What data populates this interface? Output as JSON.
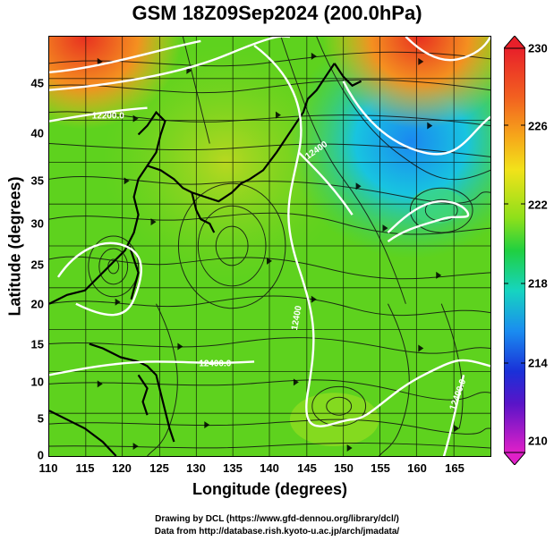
{
  "title": "GSM 18Z09Sep2024 (200.0hPa)",
  "x_axis": {
    "label": "Longitude (degrees)",
    "ticks": [
      "110",
      "115",
      "120",
      "125",
      "130",
      "135",
      "140",
      "145",
      "150",
      "155",
      "160",
      "165"
    ]
  },
  "y_axis": {
    "label": "Latitude  (degrees)",
    "ticks": [
      "0",
      "5",
      "10",
      "15",
      "20",
      "25",
      "30",
      "35",
      "40",
      "45"
    ]
  },
  "colorbar": {
    "labels": [
      "230",
      "226",
      "222",
      "218",
      "214",
      "210"
    ],
    "colors": [
      "#e8202a",
      "#f08a1a",
      "#f6d81a",
      "#8ee01a",
      "#1ee048",
      "#16d4b8",
      "#1a8cf0",
      "#1a30d8",
      "#6a14c0",
      "#e020c8"
    ]
  },
  "contour_labels": [
    "12200.0",
    "12400",
    "12400",
    "12200",
    "12400.0",
    "12400.0",
    "12400.0"
  ],
  "credits": {
    "line1": "Drawing by DCL (https://www.gfd-dennou.org/library/dcl/)",
    "line2": "Data from http://database.rish.kyoto-u.ac.jp/arch/jmadata/"
  }
}
